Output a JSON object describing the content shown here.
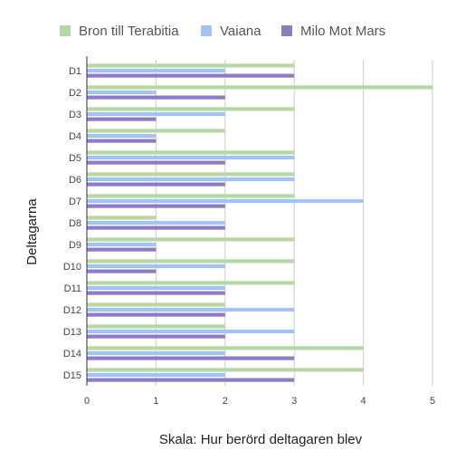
{
  "chart_data": {
    "type": "bar",
    "orientation": "horizontal",
    "xlabel": "Skala: Hur berörd deltagaren blev",
    "ylabel": "Deltagarna",
    "xlim": [
      0,
      5
    ],
    "xticks": [
      0,
      1,
      2,
      3,
      4,
      5
    ],
    "grid": true,
    "legend_position": "top",
    "categories": [
      "D1",
      "D2",
      "D3",
      "D4",
      "D5",
      "D6",
      "D7",
      "D8",
      "D9",
      "D10",
      "D11",
      "D12",
      "D13",
      "D14",
      "D15"
    ],
    "series": [
      {
        "name": "Bron till Terabitia",
        "color": "#b6d7a8",
        "values": [
          3,
          5,
          3,
          2,
          3,
          3,
          3,
          1,
          3,
          3,
          3,
          2,
          2,
          4,
          4
        ]
      },
      {
        "name": "Vaiana",
        "color": "#a4c2f4",
        "values": [
          2,
          1,
          2,
          1,
          3,
          3,
          4,
          2,
          1,
          2,
          2,
          3,
          3,
          2,
          2
        ]
      },
      {
        "name": "Milo Mot Mars",
        "color": "#8e7cc3",
        "values": [
          3,
          2,
          1,
          1,
          2,
          2,
          2,
          2,
          1,
          1,
          2,
          2,
          2,
          3,
          3
        ]
      }
    ]
  }
}
